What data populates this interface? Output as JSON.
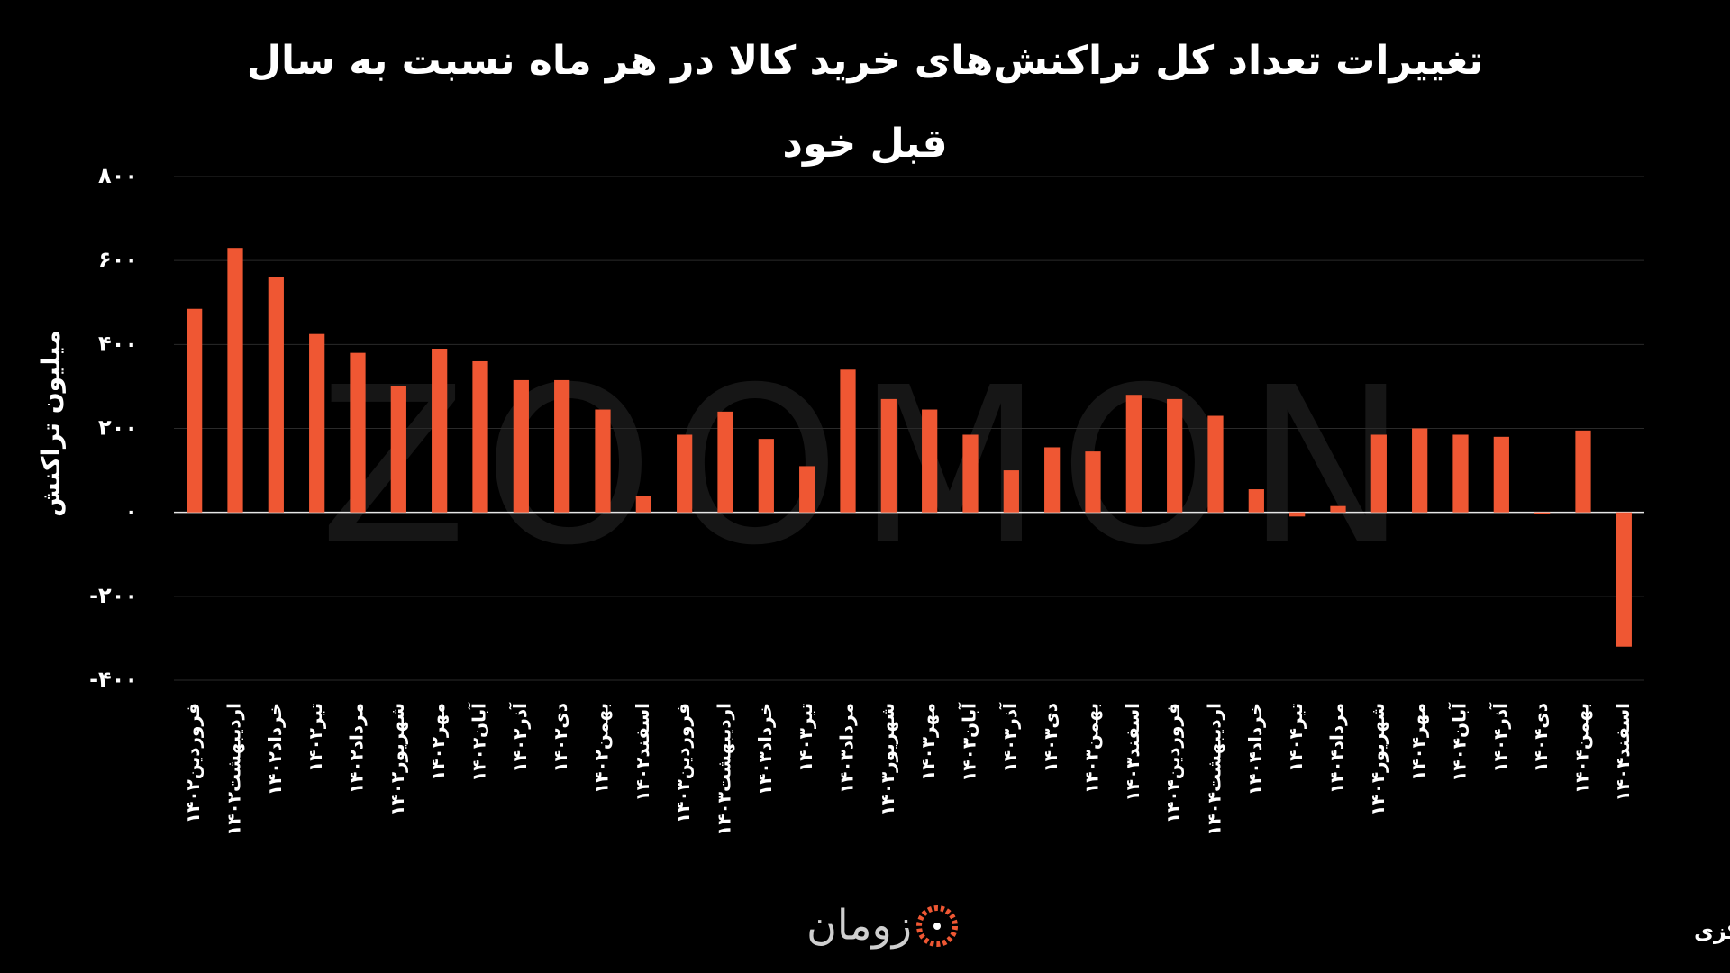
{
  "chart_data": {
    "type": "bar",
    "title": "تغییرات تعداد کل تراکنش‌های خرید کالا در هر ماه نسبت به سال قبل خود",
    "y_label": "میلیون تراکنش",
    "watermark": "ZOOMON",
    "source": "منبع: آمارهای شاپرک بانک مرکزی",
    "logo": "زومان",
    "color": "#ef5733",
    "grid": true,
    "categories": [
      "فروردین۱۴۰۲",
      "اردیبهشت۱۴۰۲",
      "خرداد۱۴۰۲",
      "تیر۱۴۰۲",
      "مرداد۱۴۰۲",
      "شهریور۱۴۰۲",
      "مهر۱۴۰۲",
      "آبان۱۴۰۲",
      "آذر۱۴۰۲",
      "دی۱۴۰۲",
      "بهمن۱۴۰۲",
      "اسفند۱۴۰۲",
      "فروردین۱۴۰۳",
      "اردیبهشت۱۴۰۳",
      "خرداد۱۴۰۳",
      "تیر۱۴۰۳",
      "مرداد۱۴۰۳",
      "شهریور۱۴۰۳",
      "مهر۱۴۰۳",
      "آبان۱۴۰۳",
      "آذر۱۴۰۳",
      "دی۱۴۰۳",
      "بهمن۱۴۰۳",
      "اسفند۱۴۰۳",
      "فروردین۱۴۰۴",
      "اردیبهشت۱۴۰۴",
      "خرداد۱۴۰۴",
      "تیر۱۴۰۴",
      "مرداد۱۴۰۴",
      "شهریور۱۴۰۴",
      "مهر۱۴۰۴",
      "آبان۱۴۰۴",
      "آذر۱۴۰۴",
      "دی۱۴۰۴",
      "بهمن۱۴۰۴",
      "اسفند۱۴۰۴"
    ],
    "values": [
      485,
      630,
      560,
      425,
      380,
      300,
      390,
      360,
      315,
      315,
      245,
      40,
      185,
      240,
      175,
      110,
      340,
      270,
      245,
      185,
      100,
      155,
      145,
      280,
      270,
      230,
      55,
      -10,
      15,
      185,
      200,
      185,
      180,
      -5,
      195,
      -320
    ],
    "ylim": [
      -400,
      800
    ],
    "yticks": [
      {
        "value": -400,
        "label": "-۴۰۰"
      },
      {
        "value": -200,
        "label": "-۲۰۰"
      },
      {
        "value": 0,
        "label": "۰"
      },
      {
        "value": 200,
        "label": "۲۰۰"
      },
      {
        "value": 400,
        "label": "۴۰۰"
      },
      {
        "value": 600,
        "label": "۶۰۰"
      },
      {
        "value": 800,
        "label": "۸۰۰"
      }
    ]
  }
}
